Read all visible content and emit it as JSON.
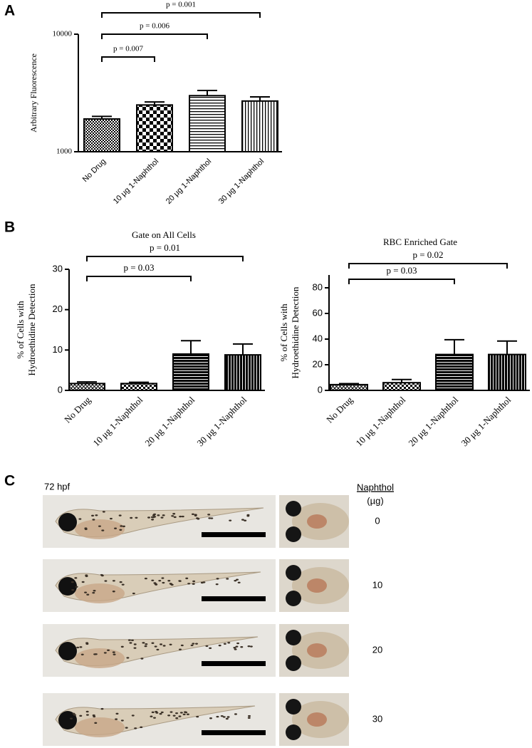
{
  "panel_labels": [
    "A",
    "B",
    "C"
  ],
  "chart_data": [
    {
      "type": "bar",
      "y_scale": "log",
      "ylabel": "Arbitrary Fluorescence",
      "categories": [
        "No Drug",
        "10 μg 1-Naphthol",
        "20 μg 1-Naphthol",
        "30 μg 1-Naphthol"
      ],
      "values": [
        1900,
        2500,
        3000,
        2700
      ],
      "errors": [
        100,
        150,
        320,
        230
      ],
      "color": "#000000",
      "ylim": [
        1000,
        10000
      ],
      "yticks": [
        1000,
        10000
      ],
      "annotations": [
        {
          "text": "p = 0.007",
          "between": [
            "No Drug",
            "10 μg 1-Naphthol"
          ]
        },
        {
          "text": "p = 0.006",
          "between": [
            "No Drug",
            "20 μg 1-Naphthol"
          ]
        },
        {
          "text": "p = 0.001",
          "between": [
            "No Drug",
            "30 μg 1-Naphthol"
          ]
        }
      ]
    },
    {
      "type": "bar",
      "title": "Gate on All Cells",
      "ylabel": [
        "% of Cells with",
        "Hydroethidine Detection"
      ],
      "categories": [
        "No Drug",
        "10 μg 1-Naphthol",
        "20 μg 1-Naphthol",
        "30 μg 1-Naphthol"
      ],
      "values": [
        1.7,
        1.7,
        9,
        8.8
      ],
      "errors": [
        0.4,
        0.3,
        3.3,
        2.7
      ],
      "color": "#000000",
      "ylim": [
        0,
        30
      ],
      "yticks": [
        0,
        10,
        20,
        30
      ],
      "annotations": [
        {
          "text": "p = 0.03",
          "between": [
            "No Drug",
            "20 μg 1-Naphthol"
          ]
        },
        {
          "text": "p = 0.01",
          "between": [
            "No Drug",
            "30 μg 1-Naphthol"
          ]
        }
      ]
    },
    {
      "type": "bar",
      "title": "RBC Enriched Gate",
      "ylabel": [
        "% of Cells with",
        "Hydroethidine Detection"
      ],
      "categories": [
        "No Drug",
        "10 μg 1-Naphthol",
        "20 μg 1-Naphthol",
        "30 μg 1-Naphthol"
      ],
      "values": [
        4.5,
        6,
        28,
        28
      ],
      "errors": [
        0.8,
        2.5,
        11.5,
        10.5
      ],
      "color": "#000000",
      "ylim": [
        0,
        90
      ],
      "yticks": [
        0,
        20,
        40,
        60,
        80
      ],
      "annotations": [
        {
          "text": "p = 0.03",
          "between": [
            "No Drug",
            "20 μg 1-Naphthol"
          ]
        },
        {
          "text": "p = 0.02",
          "between": [
            "No Drug",
            "30 μg 1-Naphthol"
          ]
        }
      ]
    }
  ],
  "panel_c": {
    "time": "72 hpf",
    "header": [
      "Naphthol",
      "(µg)"
    ],
    "doses": [
      "0",
      "10",
      "20",
      "30"
    ]
  }
}
